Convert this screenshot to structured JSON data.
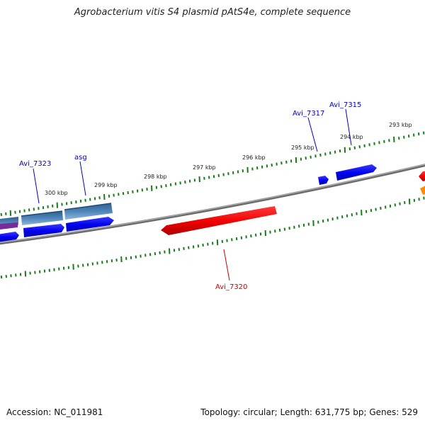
{
  "title": "Agrobacterium vitis S4 plasmid pAtS4e, complete sequence",
  "footer": {
    "accession": "Accession: NC_011981",
    "summary": "Topology: circular; Length: 631,775 bp; Genes: 529"
  },
  "ticks": [
    "300 kbp",
    "299 kbp",
    "298 kbp",
    "297 kbp",
    "296 kbp",
    "295 kbp",
    "294 kbp",
    "293 kbp"
  ],
  "genes": [
    {
      "label": "Avi_7323",
      "color": "#0000cc"
    },
    {
      "label": "asg",
      "color": "#0000cc"
    },
    {
      "label": "Avi_7317",
      "color": "#0000cc"
    },
    {
      "label": "Avi_7315",
      "color": "#0000cc"
    },
    {
      "label": "Avi_7320",
      "color": "#cc0000"
    }
  ],
  "colors": {
    "backbone": "#808080",
    "forward_cds": "#0000ff",
    "reverse_cds": "#ff0000",
    "gene_track": "#4a7fb0",
    "tick": "#1a7a1a",
    "orange": "#ff8800",
    "purple": "#6a2a8a"
  }
}
